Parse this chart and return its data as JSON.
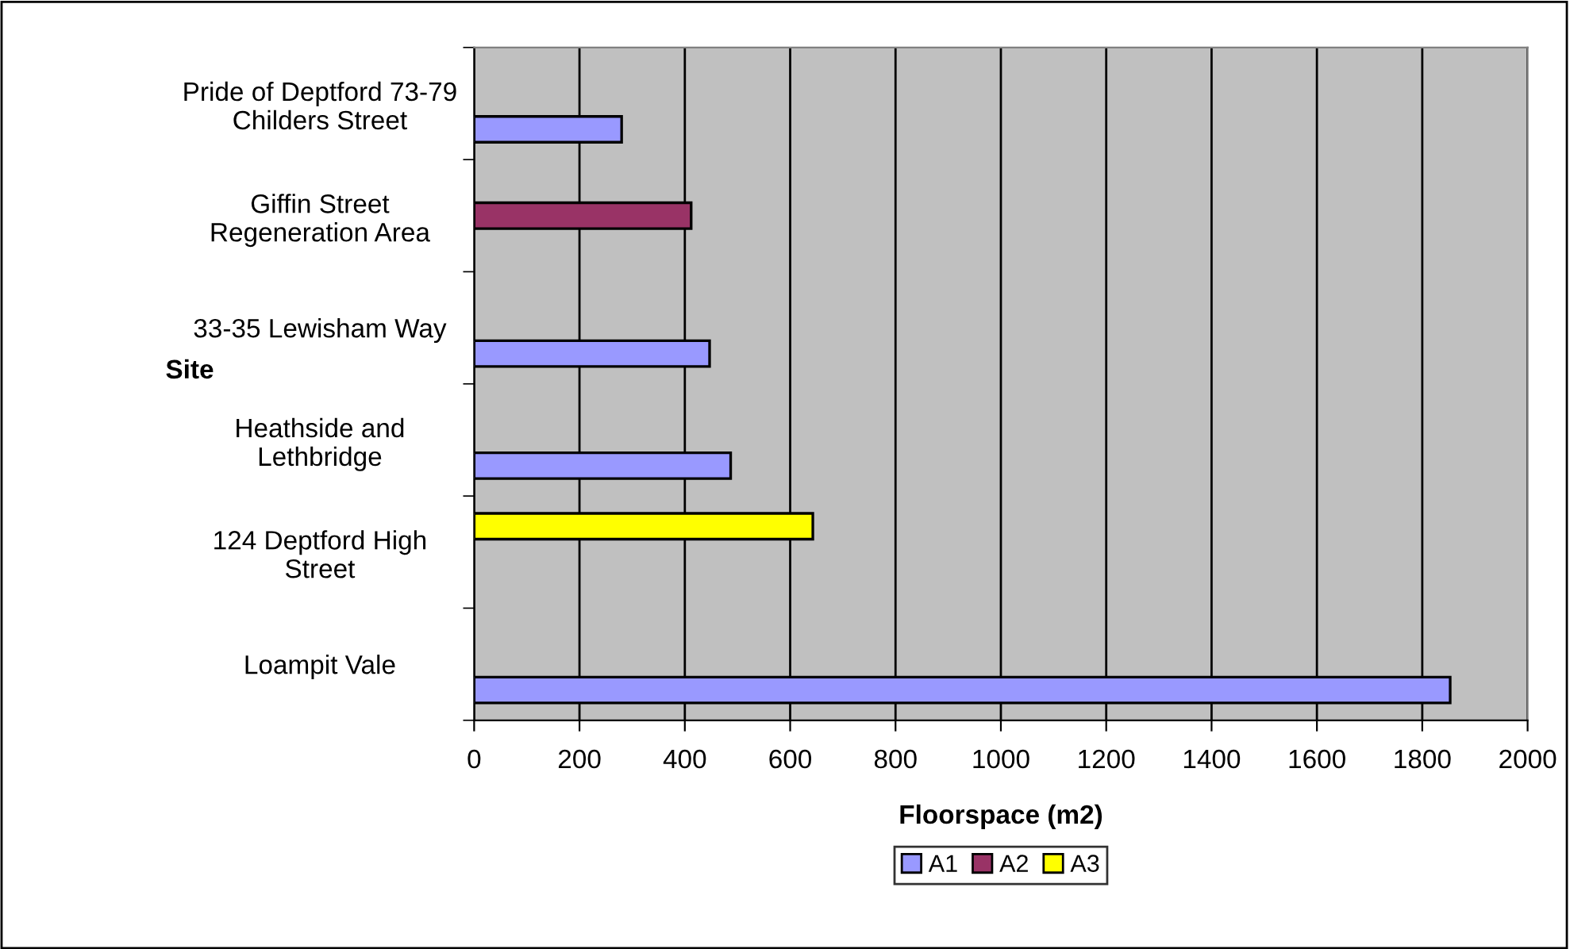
{
  "chart_data": {
    "type": "bar",
    "orientation": "horizontal",
    "categories": [
      "Pride of Deptford 73-79\nChilders Street",
      "Giffin Street\nRegeneration Area",
      "33-35 Lewisham Way",
      "Heathside and\nLethbridge",
      "124 Deptford High\nStreet",
      "Loampit Vale"
    ],
    "series": [
      {
        "name": "A1",
        "color": "#9999ff",
        "values": [
          280,
          null,
          447,
          487,
          null,
          1853
        ]
      },
      {
        "name": "A2",
        "color": "#993366",
        "values": [
          null,
          412,
          null,
          null,
          null,
          null
        ]
      },
      {
        "name": "A3",
        "color": "#ffff00",
        "values": [
          null,
          null,
          null,
          null,
          643,
          null
        ]
      }
    ],
    "xlabel": "Floorspace (m2)",
    "ylabel": "Site",
    "xlim": [
      0,
      2000
    ],
    "xticks": [
      0,
      200,
      400,
      600,
      800,
      1000,
      1200,
      1400,
      1600,
      1800,
      2000
    ],
    "grid": "x",
    "legend": "bottom"
  }
}
